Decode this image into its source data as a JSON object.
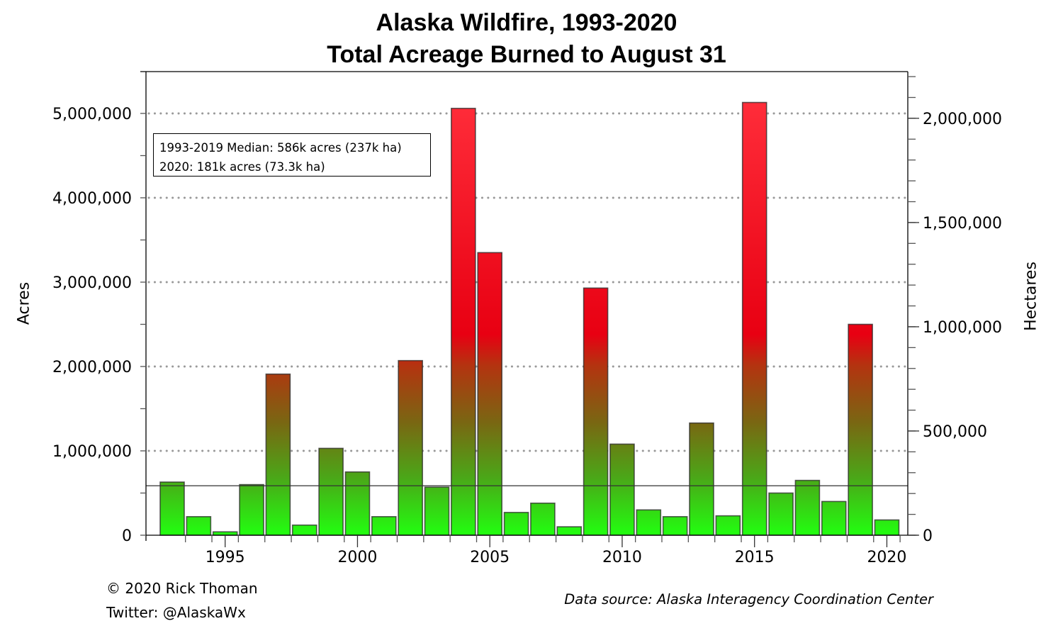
{
  "title": {
    "line1": "Alaska Wildfire, 1993-2020",
    "line2": "Total Acreage Burned to August 31"
  },
  "axes": {
    "left_label": "Acres",
    "right_label": "Hectares",
    "left_ticks": [
      "0",
      "1,000,000",
      "2,000,000",
      "3,000,000",
      "4,000,000",
      "5,000,000"
    ],
    "right_ticks": [
      "0",
      "500,000",
      "1,000,000",
      "1,500,000",
      "2,000,000"
    ],
    "x_ticks": [
      "1995",
      "2000",
      "2005",
      "2010",
      "2015",
      "2020"
    ]
  },
  "annotation": {
    "line1": "1993-2019 Median: 586k acres (237k ha)",
    "line2": "2020: 181k acres (73.3k ha)"
  },
  "credits": {
    "copyright": "© 2020 Rick Thoman",
    "twitter": "Twitter: @AlaskaWx",
    "source": "Data source: Alaska Interagency Coordination Center"
  },
  "colors": {
    "bar_high": "#ff0010",
    "bar_mid": "#8a5a10",
    "bar_low": "#22ff10",
    "grid": "#999999",
    "median_line": "#333333"
  },
  "chart_data": {
    "type": "bar",
    "title": "Alaska Wildfire, 1993-2020 — Total Acreage Burned to August 31",
    "xlabel": "",
    "ylabel": "Acres",
    "ylabel_secondary": "Hectares",
    "ylim": [
      0,
      5500000
    ],
    "ylim_secondary": [
      0,
      2225000
    ],
    "grid": true,
    "categories": [
      1993,
      1994,
      1995,
      1996,
      1997,
      1998,
      1999,
      2000,
      2001,
      2002,
      2003,
      2004,
      2005,
      2006,
      2007,
      2008,
      2009,
      2010,
      2011,
      2012,
      2013,
      2014,
      2015,
      2016,
      2017,
      2018,
      2019,
      2020
    ],
    "series": [
      {
        "name": "Acres burned to Aug 31",
        "values": [
          630000,
          220000,
          40000,
          600000,
          1910000,
          120000,
          1030000,
          750000,
          220000,
          2070000,
          570000,
          5060000,
          3350000,
          270000,
          380000,
          100000,
          2930000,
          1080000,
          300000,
          220000,
          1330000,
          230000,
          5130000,
          500000,
          650000,
          400000,
          2500000,
          181000
        ]
      }
    ],
    "reference_lines": [
      {
        "name": "1993-2019 Median",
        "value": 586000,
        "label": "586k acres (237k ha)"
      }
    ],
    "annotations": [
      "1993-2019 Median: 586k acres (237k ha)",
      "2020: 181k acres (73.3k ha)"
    ]
  }
}
